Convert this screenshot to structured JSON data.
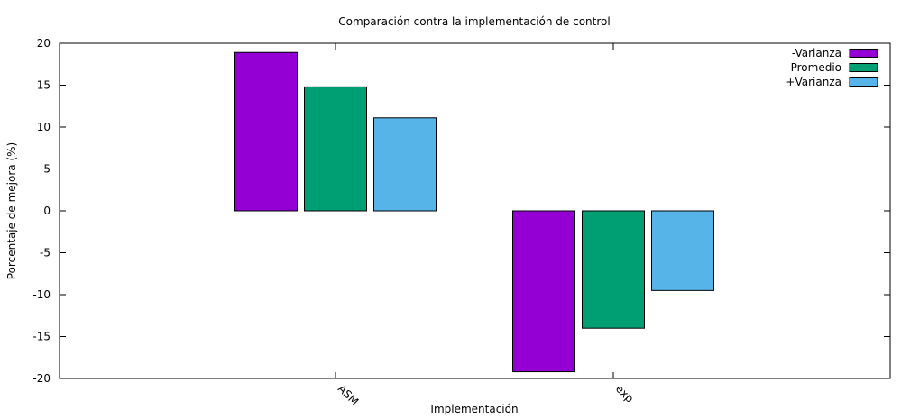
{
  "chart_data": {
    "type": "bar",
    "title": "Comparación contra la implementación de control",
    "xlabel": "Implementación",
    "ylabel": "Porcentaje de mejora (%)",
    "categories": [
      "ASM",
      "exp"
    ],
    "series": [
      {
        "name": "-Varianza",
        "color": "#9400d3",
        "values": [
          18.9,
          -19.2
        ]
      },
      {
        "name": "Promedio",
        "color": "#009e73",
        "values": [
          14.8,
          -14.0
        ]
      },
      {
        "name": "+Varianza",
        "color": "#56b4e9",
        "values": [
          11.1,
          -9.5
        ]
      }
    ],
    "ylim": [
      -20,
      20
    ],
    "yticks": [
      -20,
      -15,
      -10,
      -5,
      0,
      5,
      10,
      15,
      20
    ],
    "grid": false,
    "legend_position": "top-right"
  }
}
